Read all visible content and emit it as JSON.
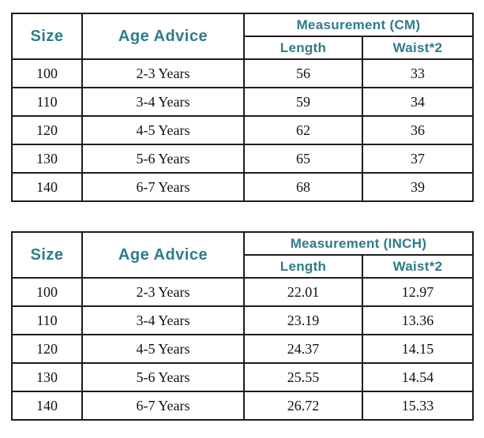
{
  "style": {
    "accent_color": "#2e7b8b",
    "border_color": "#1c1c1c",
    "data_text_color": "#111111",
    "background_color": "#ffffff"
  },
  "chart_data": [
    {
      "type": "table",
      "group_header": "Measurement (CM)",
      "headers": {
        "size": "Size",
        "age_advice": "Age Advice",
        "length": "Length",
        "waist": "Waist*2"
      },
      "rows": [
        [
          "100",
          "2-3 Years",
          "56",
          "33"
        ],
        [
          "110",
          "3-4 Years",
          "59",
          "34"
        ],
        [
          "120",
          "4-5 Years",
          "62",
          "36"
        ],
        [
          "130",
          "5-6 Years",
          "65",
          "37"
        ],
        [
          "140",
          "6-7 Years",
          "68",
          "39"
        ]
      ]
    },
    {
      "type": "table",
      "group_header": "Measurement (INCH)",
      "headers": {
        "size": "Size",
        "age_advice": "Age Advice",
        "length": "Length",
        "waist": "Waist*2"
      },
      "rows": [
        [
          "100",
          "2-3 Years",
          "22.01",
          "12.97"
        ],
        [
          "110",
          "3-4 Years",
          "23.19",
          "13.36"
        ],
        [
          "120",
          "4-5 Years",
          "24.37",
          "14.15"
        ],
        [
          "130",
          "5-6 Years",
          "25.55",
          "14.54"
        ],
        [
          "140",
          "6-7 Years",
          "26.72",
          "15.33"
        ]
      ]
    }
  ]
}
